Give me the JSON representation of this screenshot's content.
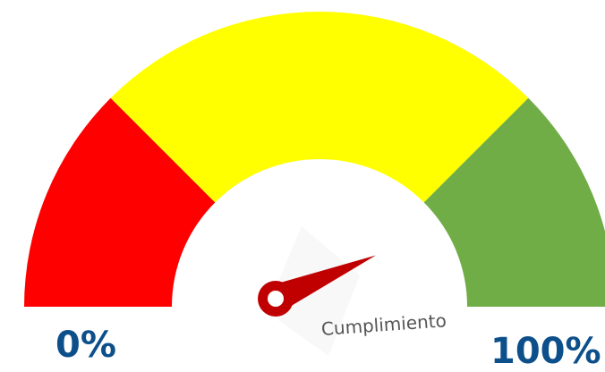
{
  "chart_data": {
    "type": "gauge",
    "min_label": "0%",
    "max_label": "100%",
    "caption": "Cumplimiento",
    "range": [
      0,
      100
    ],
    "value": 87,
    "bands": [
      {
        "from": 0,
        "to": 25,
        "color": "#ff0000"
      },
      {
        "from": 25,
        "to": 75,
        "color": "#ffff00"
      },
      {
        "from": 75,
        "to": 100,
        "color": "#70ad47"
      }
    ],
    "needle_color": "#c00000"
  }
}
